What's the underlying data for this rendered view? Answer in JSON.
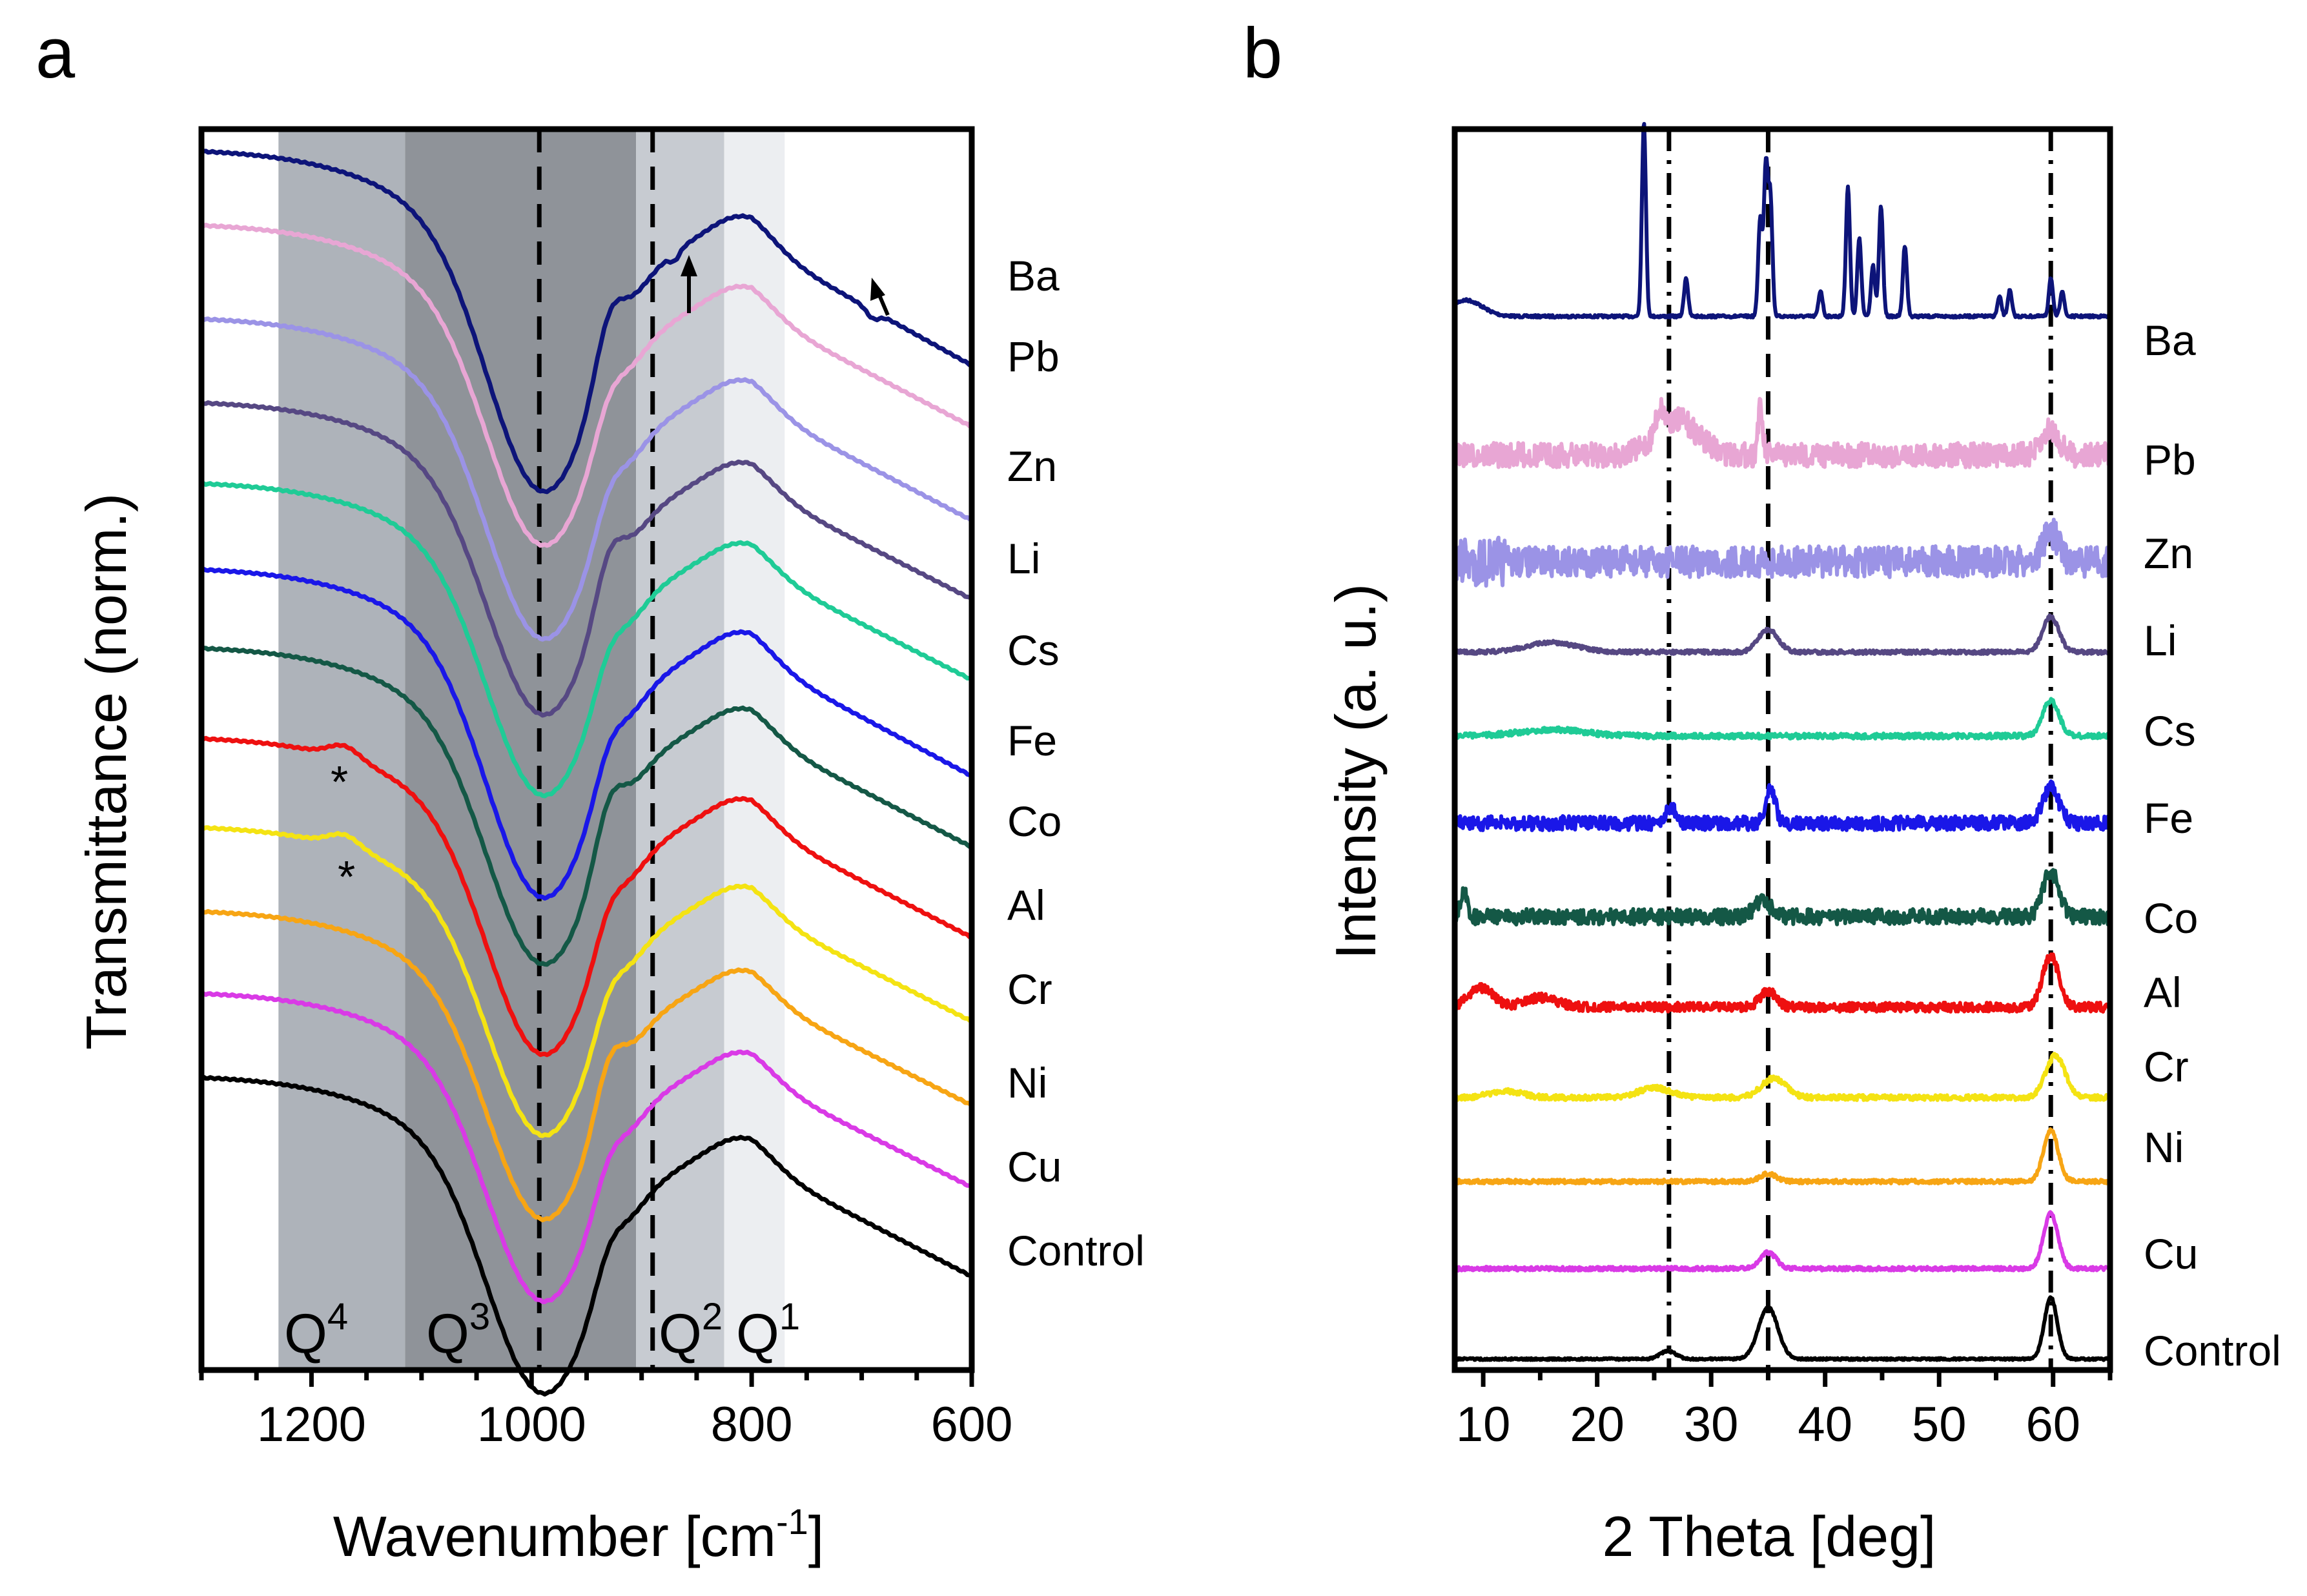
{
  "chart_data": [
    {
      "panel": "a",
      "type": "line",
      "xlabel": "Wavenumber [cm",
      "xlabel_sup": "-1",
      "xlabel_end": "]",
      "ylabel": "Transmittance (norm.)",
      "xlim": [
        1300,
        600
      ],
      "xticks": [
        1200,
        1000,
        800,
        600
      ],
      "regions": [
        {
          "label": "Q",
          "sup": "4",
          "from": 1230,
          "to": 1115,
          "color": "#aeb3ba"
        },
        {
          "label": "Q",
          "sup": "3",
          "from": 1115,
          "to": 905,
          "color": "#8f9399"
        },
        {
          "label": "Q",
          "sup": "2",
          "from": 905,
          "to": 825,
          "color": "#c7cbd1"
        },
        {
          "label": "Q",
          "sup": "1",
          "from": 825,
          "to": 770,
          "color": "#eceef1"
        }
      ],
      "vlines": [
        993,
        890
      ],
      "annotations": [
        "*",
        "*"
      ],
      "series": [
        {
          "name": "Ba",
          "color": "#0d1479"
        },
        {
          "name": "Pb",
          "color": "#e8a6d4"
        },
        {
          "name": "Zn",
          "color": "#9b93e6"
        },
        {
          "name": "Li",
          "color": "#564883"
        },
        {
          "name": "Cs",
          "color": "#1fcb96"
        },
        {
          "name": "Fe",
          "color": "#1a17e8"
        },
        {
          "name": "Co",
          "color": "#145846"
        },
        {
          "name": "Al",
          "color": "#ee1010"
        },
        {
          "name": "Cr",
          "color": "#f4e313"
        },
        {
          "name": "Ni",
          "color": "#f7a514"
        },
        {
          "name": "Cu",
          "color": "#d93ae6"
        },
        {
          "name": "Control",
          "color": "#000000"
        }
      ]
    },
    {
      "panel": "b",
      "type": "line",
      "xlabel": "2 Theta [deg]",
      "ylabel": "Intensity (a. u.)",
      "xlim": [
        7.5,
        65
      ],
      "xticks": [
        10,
        20,
        30,
        40,
        50,
        60
      ],
      "vlines": [
        {
          "x": 26.3,
          "style": "dash-dot"
        },
        {
          "x": 35.0,
          "style": "dash"
        },
        {
          "x": 59.8,
          "style": "dash-dot"
        }
      ],
      "series": [
        {
          "name": "Ba",
          "color": "#0d1479"
        },
        {
          "name": "Pb",
          "color": "#e8a6d4"
        },
        {
          "name": "Zn",
          "color": "#9b93e6"
        },
        {
          "name": "Li",
          "color": "#564883"
        },
        {
          "name": "Cs",
          "color": "#1fcb96"
        },
        {
          "name": "Fe",
          "color": "#1a17e8"
        },
        {
          "name": "Co",
          "color": "#145846"
        },
        {
          "name": "Al",
          "color": "#ee1010"
        },
        {
          "name": "Cr",
          "color": "#f4e313"
        },
        {
          "name": "Ni",
          "color": "#f7a514"
        },
        {
          "name": "Cu",
          "color": "#d93ae6"
        },
        {
          "name": "Control",
          "color": "#000000"
        }
      ]
    }
  ]
}
